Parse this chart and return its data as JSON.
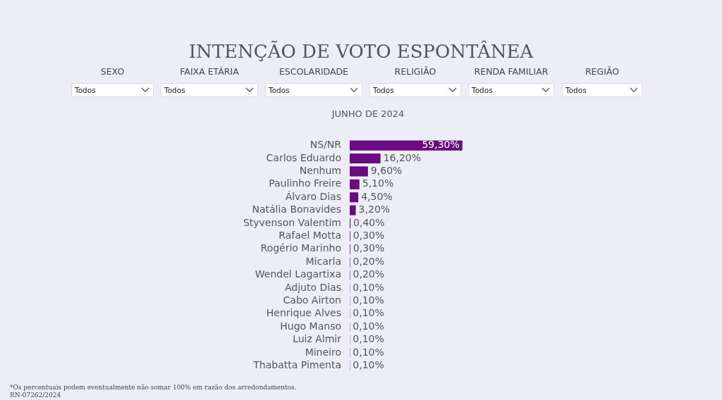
{
  "chart_data": [
    {
      "type": "other",
      "title": "INTENÇÃO DE VOTO ESPONTÂNEA",
      "annotations": [
        "SEXO",
        "Todos",
        "FAIXA ETÁRIA",
        "Todos",
        "ESCOLARIDADE",
        "Todos",
        "RELIGIÃO",
        "Todos",
        "RENDA FAMILIAR",
        "Todos",
        "REGIÃO",
        "Todos"
      ]
    },
    {
      "type": "bar",
      "orientation": "horizontal",
      "title": "JUNHO DE 2024",
      "categories": [
        "NS/NR",
        "Carlos Eduardo",
        "Nenhum",
        "Paulinho Freire",
        "Álvaro Dias",
        "Natália Bonavides",
        "Styvenson Valentim",
        "Rafael Motta",
        "Rogério Marinho",
        "Micarla",
        "Wendel Lagartixa",
        "Adjuto Dias",
        "Cabo Airton",
        "Henrique Alves",
        "Hugo Manso",
        "Luiz Almir",
        "Mineiro",
        "Thabatta Pimenta"
      ],
      "values": [
        59.3,
        16.2,
        9.6,
        5.1,
        4.5,
        3.2,
        0.4,
        0.3,
        0.3,
        0.2,
        0.2,
        0.1,
        0.1,
        0.1,
        0.1,
        0.1,
        0.1,
        0.1
      ],
      "value_labels": [
        "59,30%",
        "16,20%",
        "9,60%",
        "5,10%",
        "4,50%",
        "3,20%",
        "0,40%",
        "0,30%",
        "0,30%",
        "0,20%",
        "0,20%",
        "0,10%",
        "0,10%",
        "0,10%",
        "0,10%",
        "0,10%",
        "0,10%",
        "0,10%"
      ],
      "color": "#6b0b82",
      "legend": false,
      "annotations": [
        "*Os percentuais podem eventualmente não somar 100% em razão dos arredondamentos.",
        "RN-07262/2024"
      ]
    }
  ]
}
